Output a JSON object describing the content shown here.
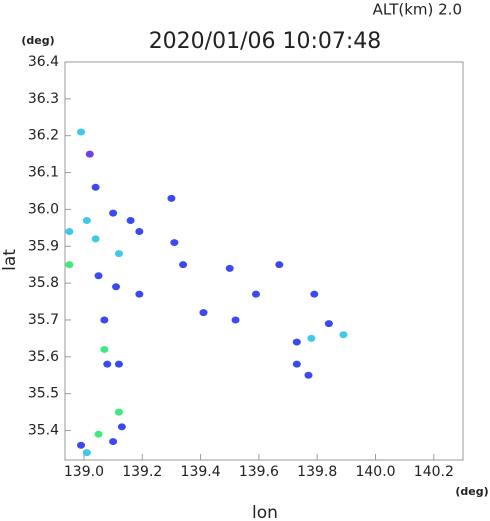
{
  "chart_data": {
    "type": "scatter",
    "title": "2020/01/06 10:07:48",
    "subtitle": "ALT(km)  2.0",
    "x_unit": "(deg)",
    "y_unit": "(deg)",
    "x_label": "lon",
    "y_label": "lat",
    "xlim": [
      138.935,
      140.3
    ],
    "ylim": [
      35.32,
      36.4
    ],
    "xticks": [
      {
        "value": 139.0,
        "label": "139.0"
      },
      139.2,
      139.4,
      139.6,
      139.8,
      {
        "value": 140.0,
        "label": "140.0"
      },
      140.2
    ],
    "yticks": [
      35.4,
      35.5,
      35.6,
      35.7,
      35.8,
      35.9,
      {
        "value": 36.0,
        "label": "36.0"
      },
      36.1,
      36.2,
      36.3,
      36.4
    ],
    "x": [
      138.99,
      139.02,
      139.04,
      139.01,
      138.95,
      139.04,
      138.95,
      139.1,
      139.12,
      139.16,
      139.19,
      139.31,
      139.3,
      139.11,
      139.19,
      139.05,
      139.07,
      139.08,
      139.12,
      139.07,
      139.12,
      139.13,
      139.05,
      139.1,
      139.01,
      138.99,
      139.34,
      139.5,
      139.59,
      139.67,
      139.73,
      139.79,
      139.84,
      139.89,
      139.78,
      139.73,
      139.77,
      139.41,
      139.52
    ],
    "values": [
      36.21,
      36.15,
      36.06,
      35.97,
      35.94,
      35.92,
      35.85,
      35.99,
      35.88,
      35.97,
      35.94,
      35.91,
      36.03,
      35.79,
      35.77,
      35.82,
      35.62,
      35.58,
      35.58,
      35.7,
      35.45,
      35.41,
      35.39,
      35.37,
      35.34,
      35.36,
      35.85,
      35.84,
      35.77,
      35.85,
      35.64,
      35.77,
      35.69,
      35.66,
      35.65,
      35.58,
      35.55,
      35.72,
      35.7
    ],
    "colors": [
      "#40c8e8",
      "#7040e0",
      "#3a4af0",
      "#40c8e8",
      "#40c8e8",
      "#40c8e8",
      "#40e880",
      "#3a4af0",
      "#40c8e8",
      "#3a4af0",
      "#3a4af0",
      "#3a4af0",
      "#3a4af0",
      "#3a4af0",
      "#3a4af0",
      "#3a4af0",
      "#40e880",
      "#3a4af0",
      "#3a4af0",
      "#3a4af0",
      "#40e880",
      "#3a4af0",
      "#40e880",
      "#3a4af0",
      "#40c8e8",
      "#3a4af0",
      "#3a4af0",
      "#3a4af0",
      "#3a4af0",
      "#3a4af0",
      "#3a4af0",
      "#3a4af0",
      "#3a4af0",
      "#40c8e8",
      "#40c8e8",
      "#3a4af0",
      "#3a4af0",
      "#3a4af0",
      "#3a4af0"
    ]
  }
}
